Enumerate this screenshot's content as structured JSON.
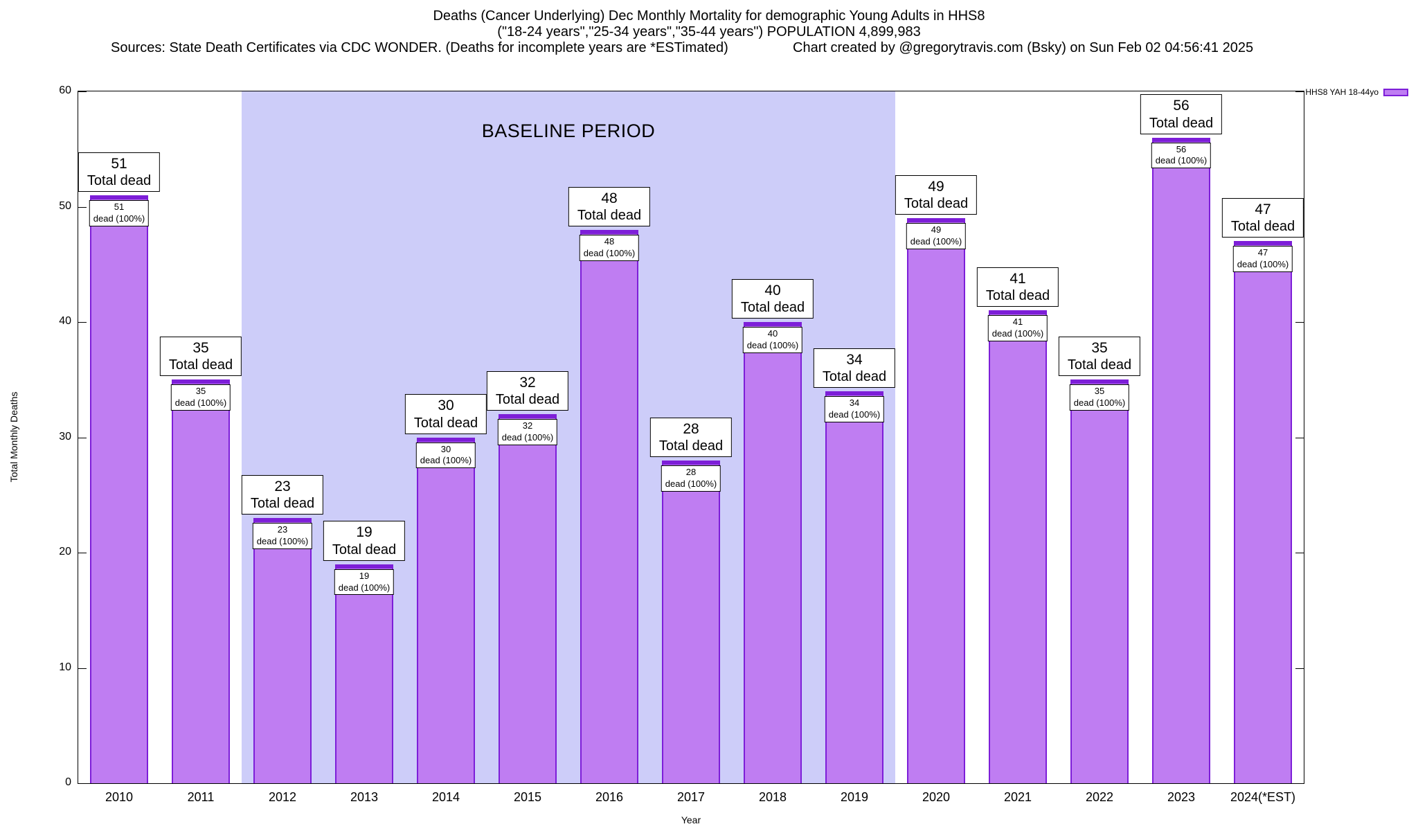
{
  "title": {
    "line1": "Deaths (Cancer Underlying) Dec Monthly Mortality for demographic Young Adults in HHS8",
    "line2": "(\"18-24 years\",\"25-34 years\",\"35-44 years\") POPULATION 4,899,983",
    "sources": "Sources: State Death Certificates via CDC WONDER. (Deaths for incomplete years are *ESTimated)",
    "credit": "Chart created by @gregorytravis.com (Bsky) on Sun Feb 02 04:56:41 2025"
  },
  "legend": {
    "label": "HHS8 YAH 18-44yo",
    "position": "top-right-outside"
  },
  "axes": {
    "ylabel": "Total Monthly Deaths",
    "xlabel": "Year",
    "yticks": [
      0,
      10,
      20,
      30,
      40,
      50,
      60
    ],
    "ymax": 60
  },
  "baseline": {
    "label": "BASELINE PERIOD",
    "start_index": 2,
    "end_index": 9,
    "start_year": "2012",
    "end_year": "2019"
  },
  "chart_data": {
    "type": "bar",
    "title": "Deaths (Cancer Underlying) Dec Monthly Mortality for demographic Young Adults in HHS8",
    "categories": [
      "2010",
      "2011",
      "2012",
      "2013",
      "2014",
      "2015",
      "2016",
      "2017",
      "2018",
      "2019",
      "2020",
      "2021",
      "2022",
      "2023",
      "2024(*EST)"
    ],
    "values": [
      51,
      35,
      23,
      19,
      30,
      32,
      48,
      28,
      40,
      34,
      49,
      41,
      35,
      56,
      47
    ],
    "series_name": "HHS8 YAH 18-44yo",
    "outer_label_text": "Total dead",
    "inner_label_text": "dead (100%)",
    "xlabel": "Year",
    "ylabel": "Total Monthly Deaths",
    "ylim": [
      0,
      60
    ],
    "grid": false,
    "legend_position": "top-right",
    "colors": {
      "bar_fill": "#bf7df2",
      "bar_border": "#7d1ed8",
      "baseline_bg": "#cdcdf9",
      "label_box_bg": "#ffffff",
      "label_box_border": "#000000"
    }
  }
}
